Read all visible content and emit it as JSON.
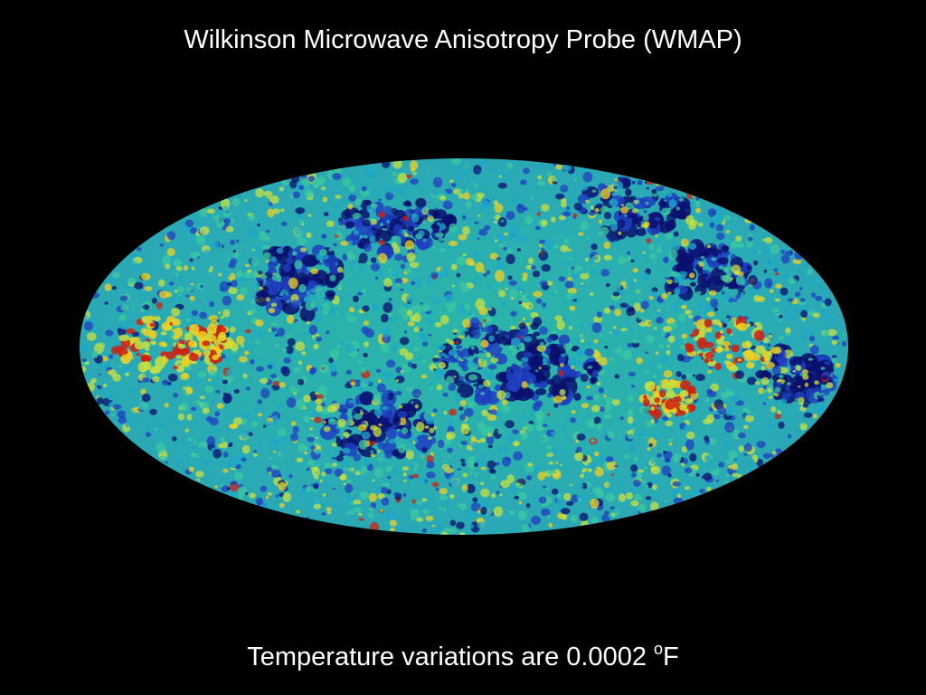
{
  "slide": {
    "title": "Wilkinson Microwave Anisotropy Probe (WMAP)",
    "caption_main": "Temperature variations are 0.0002 ",
    "caption_superscript": "o",
    "caption_unit": "F"
  },
  "image": {
    "subject": "cosmic-microwave-background-all-sky-map",
    "projection": "mollweide",
    "palette": {
      "background": "#000000",
      "cold_deep": "#0a0f6e",
      "cold": "#1f3fbf",
      "cool": "#1fa8c8",
      "mid": "#3cc8a0",
      "warm": "#c8e040",
      "hot": "#f0d020",
      "hottest": "#d02010"
    }
  }
}
